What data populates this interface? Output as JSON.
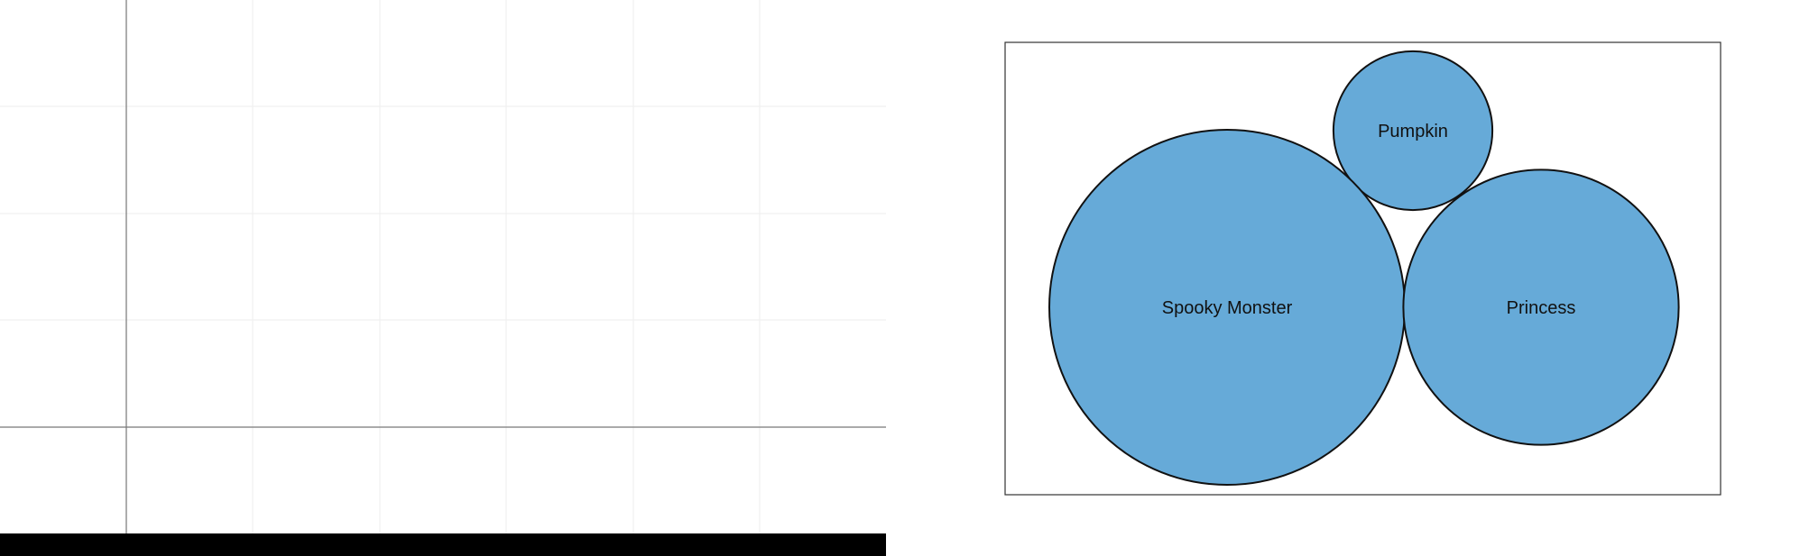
{
  "chart_data": [
    {
      "type": "scatter",
      "grid": true,
      "points": []
    },
    {
      "type": "bubble",
      "grid": false,
      "colors": {
        "bubble_fill": "#66aad8",
        "bubble_stroke": "#111111",
        "frame": "#333333"
      },
      "bubbles": [
        {
          "label": "Pumpkin",
          "value": 1
        },
        {
          "label": "Spooky Monster",
          "value": 5
        },
        {
          "label": "Princess",
          "value": 3
        }
      ]
    }
  ]
}
